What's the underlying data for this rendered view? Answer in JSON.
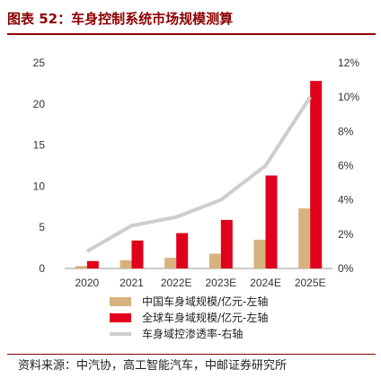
{
  "title": "图表 52：车身控制系统市场规模测算",
  "source": "资料来源：中汽协，高工智能汽车，中邮证券研究所",
  "colors": {
    "title": "#8b0000",
    "china_bar": "#d8b27e",
    "global_bar": "#e0001b",
    "line": "#cdcdcd"
  },
  "chart_data": {
    "type": "bar",
    "categories": [
      "2020",
      "2021",
      "2022E",
      "2023E",
      "2024E",
      "2025E"
    ],
    "series": [
      {
        "name": "中国车身域规模/亿元-左轴",
        "type": "bar",
        "axis": "left",
        "values": [
          0.3,
          1.0,
          1.3,
          1.8,
          3.5,
          7.3
        ]
      },
      {
        "name": "全球车身域规模/亿元-左轴",
        "type": "bar",
        "axis": "left",
        "values": [
          0.9,
          3.4,
          4.3,
          5.9,
          11.3,
          22.8
        ]
      },
      {
        "name": "车身域控渗透率-右轴",
        "type": "line",
        "axis": "right",
        "values": [
          0.01,
          0.025,
          0.03,
          0.04,
          0.06,
          0.1
        ]
      }
    ],
    "ylim_left": [
      0,
      25
    ],
    "yticks_left": [
      "0",
      "5",
      "10",
      "15",
      "20",
      "25"
    ],
    "ylim_right": [
      0,
      0.12
    ],
    "yticks_right": [
      "0%",
      "2%",
      "4%",
      "6%",
      "8%",
      "10%",
      "12%"
    ],
    "legend_position": "bottom",
    "grid": false
  }
}
